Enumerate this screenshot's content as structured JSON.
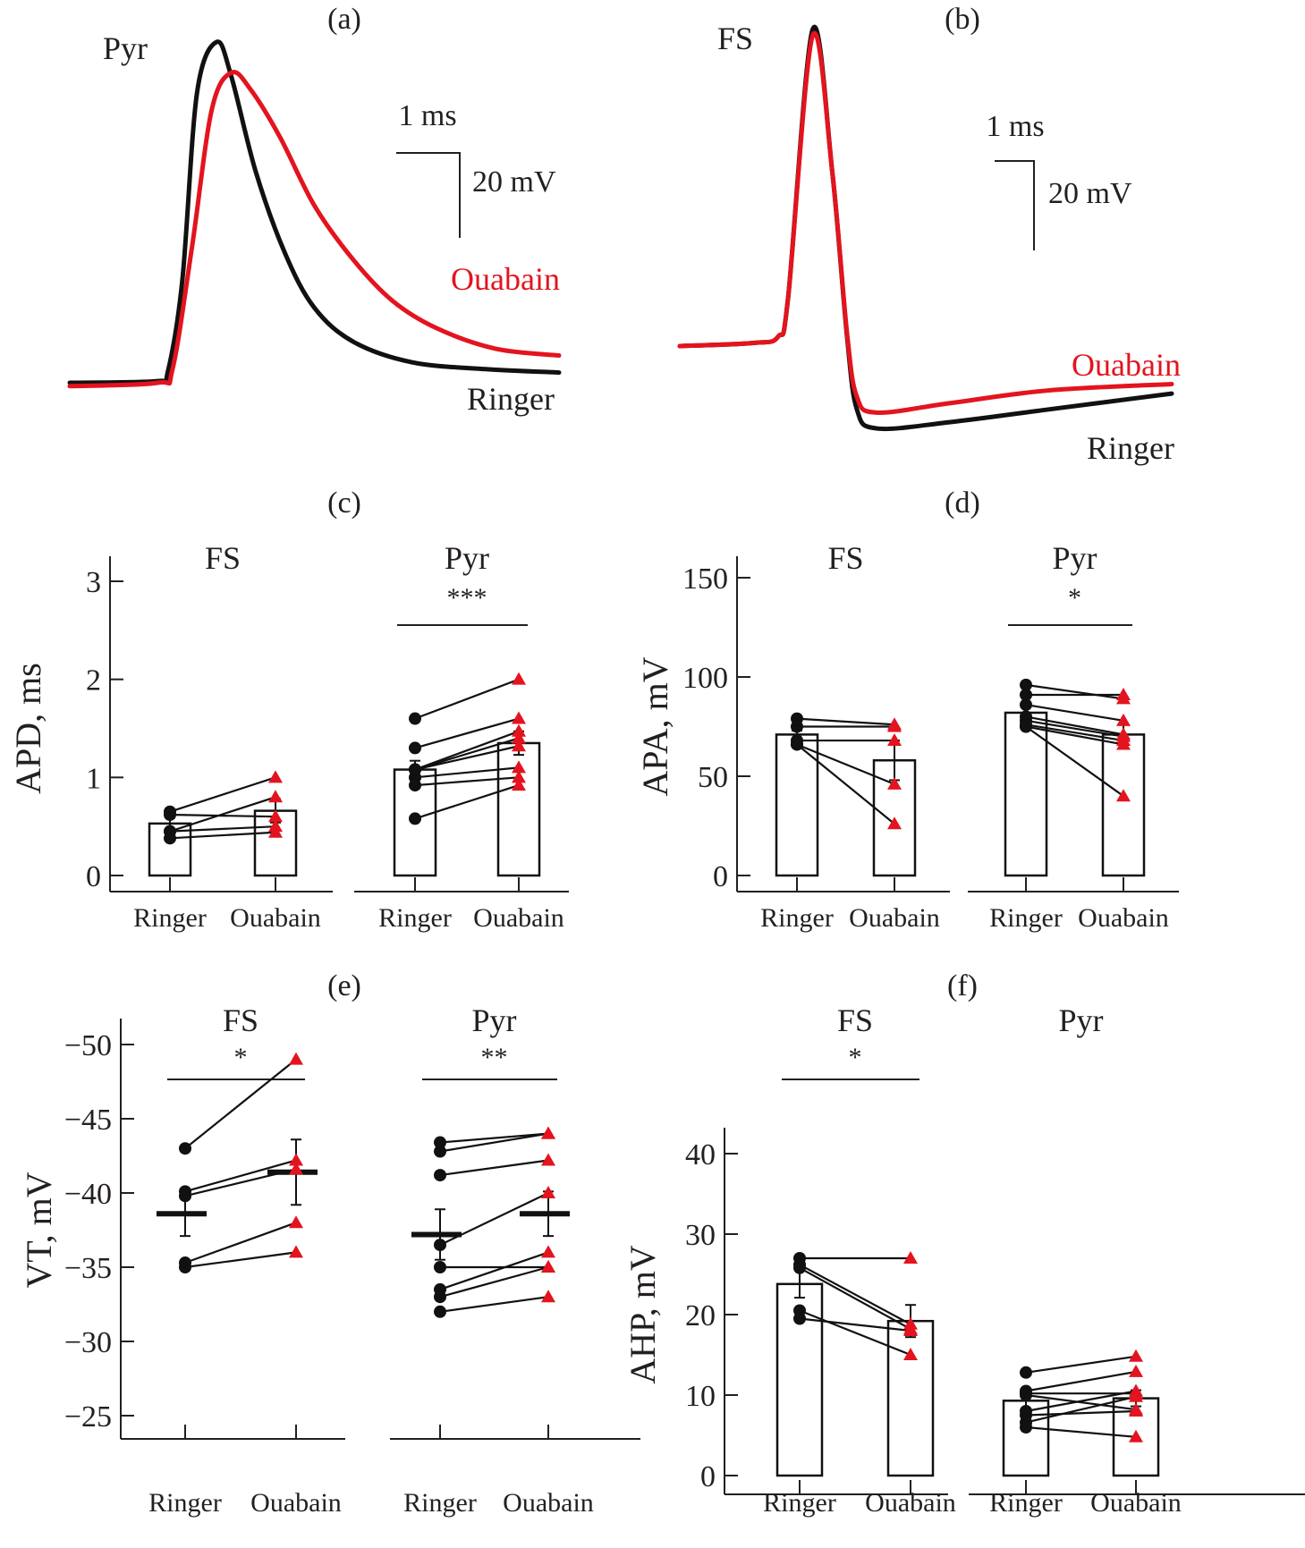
{
  "colors": {
    "ringer": "#111111",
    "ouabain": "#e3141f",
    "axis": "#231f20"
  },
  "chart_data": [
    {
      "panel": "(a)",
      "type": "line",
      "title": "Pyr",
      "scale_bar": {
        "time": "1 ms",
        "voltage": "20 mV"
      },
      "series": [
        {
          "name": "Ringer",
          "label": "Ringer",
          "shape": "fast-rise, fast decay, low tail",
          "points_norm": [
            [
              0,
              0
            ],
            [
              0.18,
              0.005
            ],
            [
              0.2,
              0.03
            ],
            [
              0.23,
              0.3
            ],
            [
              0.26,
              0.85
            ],
            [
              0.3,
              1.0
            ],
            [
              0.33,
              0.9
            ],
            [
              0.38,
              0.62
            ],
            [
              0.44,
              0.38
            ],
            [
              0.5,
              0.22
            ],
            [
              0.58,
              0.12
            ],
            [
              0.7,
              0.06
            ],
            [
              0.85,
              0.04
            ],
            [
              1,
              0.03
            ]
          ]
        },
        {
          "name": "Ouabain",
          "label": "Ouabain",
          "shape": "slower rise, broader, elevated tail",
          "points_norm": [
            [
              0,
              -0.01
            ],
            [
              0.18,
              0.0
            ],
            [
              0.21,
              0.04
            ],
            [
              0.25,
              0.4
            ],
            [
              0.29,
              0.8
            ],
            [
              0.33,
              0.91
            ],
            [
              0.37,
              0.86
            ],
            [
              0.43,
              0.72
            ],
            [
              0.5,
              0.52
            ],
            [
              0.58,
              0.36
            ],
            [
              0.66,
              0.24
            ],
            [
              0.75,
              0.16
            ],
            [
              0.87,
              0.1
            ],
            [
              1,
              0.08
            ]
          ]
        }
      ]
    },
    {
      "panel": "(b)",
      "type": "line",
      "title": "FS",
      "scale_bar": {
        "time": "1 ms",
        "voltage": "20 mV"
      },
      "series": [
        {
          "name": "Ringer",
          "label": "Ringer",
          "points_norm": [
            [
              0,
              0
            ],
            [
              0.15,
              0.01
            ],
            [
              0.2,
              0.03
            ],
            [
              0.22,
              0.15
            ],
            [
              0.27,
              1.0
            ],
            [
              0.31,
              0.55
            ],
            [
              0.34,
              0.03
            ],
            [
              0.36,
              -0.2
            ],
            [
              0.4,
              -0.26
            ],
            [
              0.55,
              -0.24
            ],
            [
              0.75,
              -0.2
            ],
            [
              1,
              -0.15
            ]
          ]
        },
        {
          "name": "Ouabain",
          "label": "Ouabain",
          "points_norm": [
            [
              0,
              0
            ],
            [
              0.15,
              0.01
            ],
            [
              0.2,
              0.03
            ],
            [
              0.22,
              0.15
            ],
            [
              0.27,
              0.98
            ],
            [
              0.31,
              0.55
            ],
            [
              0.34,
              0.04
            ],
            [
              0.36,
              -0.16
            ],
            [
              0.4,
              -0.21
            ],
            [
              0.55,
              -0.18
            ],
            [
              0.75,
              -0.14
            ],
            [
              1,
              -0.12
            ]
          ]
        }
      ]
    },
    {
      "panel": "(c)",
      "type": "bar",
      "ylabel": "APD, ms",
      "ylim": [
        0,
        3.15
      ],
      "yticks": [
        "0",
        "1",
        "2",
        "3"
      ],
      "ytick_values": [
        0,
        1,
        2,
        3
      ],
      "groups": [
        {
          "title": "FS",
          "sig": "",
          "categories": [
            "Ringer",
            "Ouabain"
          ],
          "bars": [
            0.53,
            0.66
          ],
          "errors": [
            0.06,
            0.12
          ],
          "pairs": [
            [
              0.65,
              1.0
            ],
            [
              0.62,
              0.6
            ],
            [
              0.45,
              0.8
            ],
            [
              0.45,
              0.5
            ],
            [
              0.38,
              0.44
            ]
          ]
        },
        {
          "title": "Pyr",
          "sig": "***",
          "categories": [
            "Ringer",
            "Ouabain"
          ],
          "bars": [
            1.08,
            1.35
          ],
          "errors": [
            0.09,
            0.12
          ],
          "pairs": [
            [
              1.6,
              2.0
            ],
            [
              1.3,
              1.6
            ],
            [
              1.08,
              1.47
            ],
            [
              1.08,
              1.4
            ],
            [
              1.08,
              1.32
            ],
            [
              1.0,
              1.1
            ],
            [
              0.92,
              1.0
            ],
            [
              0.58,
              0.92
            ]
          ]
        }
      ]
    },
    {
      "panel": "(d)",
      "type": "bar",
      "ylabel": "APA, mV",
      "ylim": [
        0,
        160
      ],
      "yticks": [
        "0",
        "50",
        "100",
        "150"
      ],
      "ytick_values": [
        0,
        50,
        100,
        150
      ],
      "groups": [
        {
          "title": "FS",
          "sig": "",
          "categories": [
            "Ringer",
            "Ouabain"
          ],
          "bars": [
            71,
            58
          ],
          "errors": [
            2,
            10
          ],
          "pairs": [
            [
              79,
              76
            ],
            [
              75,
              75
            ],
            [
              68,
              68
            ],
            [
              66,
              46
            ],
            [
              66,
              26
            ]
          ]
        },
        {
          "title": "Pyr",
          "sig": "*",
          "categories": [
            "Ringer",
            "Ouabain"
          ],
          "bars": [
            82,
            71
          ],
          "errors": [
            3,
            5
          ],
          "pairs": [
            [
              96,
              89
            ],
            [
              91,
              91
            ],
            [
              86,
              78
            ],
            [
              80,
              71
            ],
            [
              78,
              70
            ],
            [
              76,
              68
            ],
            [
              75,
              66
            ],
            [
              75,
              40
            ]
          ]
        }
      ]
    },
    {
      "panel": "(e)",
      "type": "scatter",
      "ylabel": "VT, mV",
      "ylim": [
        -51.5,
        -22.5
      ],
      "yticks": [
        "−25",
        "−30",
        "−35",
        "−40",
        "−45",
        "−50"
      ],
      "ytick_values": [
        -25,
        -30,
        -35,
        -40,
        -45,
        -50
      ],
      "groups": [
        {
          "title": "FS",
          "sig": "*",
          "categories": [
            "Ringer",
            "Ouabain"
          ],
          "means": [
            -38.6,
            -41.4
          ],
          "errors": [
            1.5,
            2.2
          ],
          "pairs": [
            [
              -35.0,
              -36.0
            ],
            [
              -35.3,
              -38.0
            ],
            [
              -39.8,
              -41.6
            ],
            [
              -40.1,
              -42.2
            ],
            [
              -43.0,
              -49.0
            ]
          ]
        },
        {
          "title": "Pyr",
          "sig": "**",
          "categories": [
            "Ringer",
            "Ouabain"
          ],
          "means": [
            -37.2,
            -38.6
          ],
          "errors": [
            1.7,
            1.5
          ],
          "pairs": [
            [
              -32.0,
              -33.0
            ],
            [
              -33.0,
              -35.0
            ],
            [
              -33.5,
              -36.0
            ],
            [
              -35.0,
              -35.0
            ],
            [
              -36.5,
              -40.0
            ],
            [
              -41.2,
              -42.2
            ],
            [
              -42.8,
              -44.0
            ],
            [
              -43.4,
              -44.0
            ]
          ]
        }
      ]
    },
    {
      "panel": "(f)",
      "type": "bar",
      "ylabel": "AHP, mV",
      "ylim": [
        0,
        43
      ],
      "yticks": [
        "0",
        "10",
        "20",
        "30",
        "40"
      ],
      "ytick_values": [
        0,
        10,
        20,
        30,
        40
      ],
      "groups": [
        {
          "title": "FS",
          "sig": "*",
          "categories": [
            "Ringer",
            "Ouabain"
          ],
          "bars": [
            23.8,
            19.2
          ],
          "errors": [
            1.7,
            2.0
          ],
          "pairs": [
            [
              27.0,
              27.0
            ],
            [
              26.2,
              18.8
            ],
            [
              25.8,
              18.2
            ],
            [
              20.5,
              15.0
            ],
            [
              19.5,
              18.0
            ]
          ]
        },
        {
          "title": "Pyr",
          "sig": "",
          "categories": [
            "Ringer",
            "Ouabain"
          ],
          "bars": [
            9.3,
            9.6
          ],
          "errors": [
            1.0,
            1.0
          ],
          "pairs": [
            [
              12.8,
              14.8
            ],
            [
              10.5,
              12.9
            ],
            [
              10.2,
              10.2
            ],
            [
              10.0,
              8.2
            ],
            [
              8.0,
              10.5
            ],
            [
              7.5,
              8.0
            ],
            [
              6.6,
              9.8
            ],
            [
              6.0,
              4.8
            ]
          ]
        }
      ]
    }
  ]
}
